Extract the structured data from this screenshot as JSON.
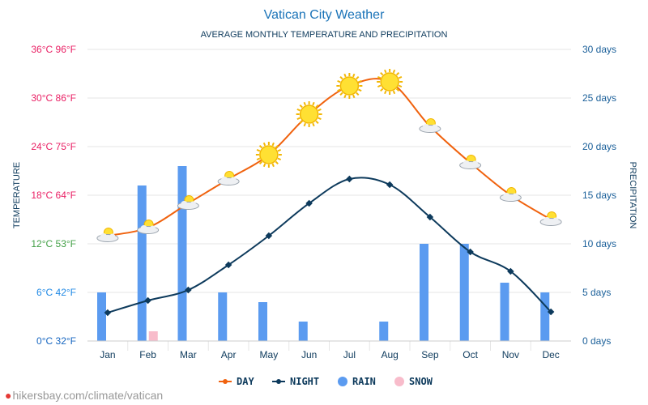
{
  "page": {
    "title": "Vatican City Weather",
    "subtitle": "AVERAGE MONTHLY TEMPERATURE AND PRECIPITATION",
    "source_url": "hikersbay.com/climate/vatican"
  },
  "colors": {
    "title": "#1a73b8",
    "subtitle": "#0d3a5c",
    "day": "#f0620e",
    "night": "#0d3a5c",
    "rain": "#5b9bf0",
    "snow": "#f8bccb",
    "right_axis": "#1a5f99",
    "grid": "#e6e6e6"
  },
  "chart_data": {
    "type": "line",
    "categories": [
      "Jan",
      "Feb",
      "Mar",
      "Apr",
      "May",
      "Jun",
      "Jul",
      "Aug",
      "Sep",
      "Oct",
      "Nov",
      "Dec"
    ],
    "series": [
      {
        "name": "DAY",
        "type": "line",
        "axis": "left",
        "values": [
          13,
          14,
          17,
          20,
          23,
          28,
          31.5,
          32,
          26.5,
          22,
          18,
          15
        ],
        "icons": [
          "partly-cloudy",
          "partly-cloudy",
          "partly-cloudy",
          "partly-cloudy",
          "sun",
          "sun",
          "sun",
          "sun",
          "partly-cloudy",
          "partly-cloudy",
          "partly-cloudy",
          "partly-cloudy"
        ]
      },
      {
        "name": "NIGHT",
        "type": "line",
        "axis": "left",
        "values": [
          3.5,
          5,
          6.3,
          9.4,
          13,
          17,
          20,
          19.3,
          15.3,
          11,
          8.6,
          3.6
        ]
      },
      {
        "name": "RAIN",
        "type": "bar",
        "axis": "right",
        "values": [
          5,
          16,
          18,
          5,
          4,
          2,
          0,
          2,
          10,
          10,
          6,
          5
        ]
      },
      {
        "name": "SNOW",
        "type": "bar",
        "axis": "right",
        "values": [
          0,
          1,
          0,
          0,
          0,
          0,
          0,
          0,
          0,
          0,
          0,
          0
        ]
      }
    ],
    "left_axis": {
      "label": "TEMPERATURE",
      "range": [
        0,
        36
      ],
      "ticks": [
        "0°C 32°F",
        "6°C 42°F",
        "12°C 53°F",
        "18°C 64°F",
        "24°C 75°F",
        "30°C 86°F",
        "36°C 96°F"
      ],
      "tick_colors": [
        "#1565c0",
        "#1e88e5",
        "#43a047",
        "#e91e63",
        "#e91e63",
        "#e91e63",
        "#e91e63"
      ]
    },
    "right_axis": {
      "label": "PRECIPITATION",
      "range": [
        0,
        30
      ],
      "ticks": [
        "0 days",
        "5 days",
        "10 days",
        "15 days",
        "20 days",
        "25 days",
        "30 days"
      ]
    },
    "legend": [
      "DAY",
      "NIGHT",
      "RAIN",
      "SNOW"
    ],
    "legend_position": "bottom",
    "grid": true
  }
}
